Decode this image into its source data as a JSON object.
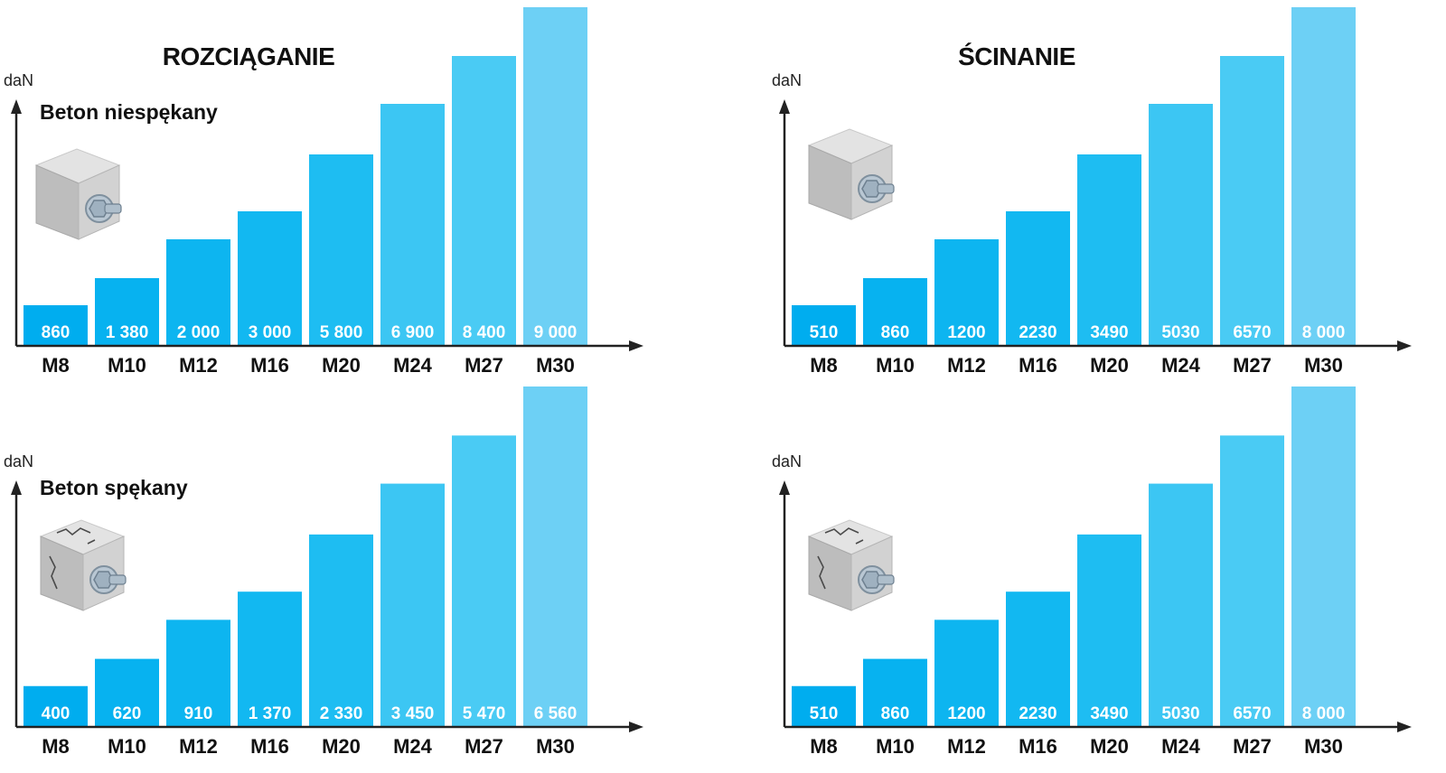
{
  "chart_data": [
    {
      "type": "bar",
      "title": "ROZCIĄGANIE",
      "subtitle": "Beton niespękany",
      "ylabel": "daN",
      "cube_icon": "uncracked-concrete-bolt-icon",
      "categories": [
        "M8",
        "M10",
        "M12",
        "M16",
        "M20",
        "M24",
        "M27",
        "M30"
      ],
      "values": [
        860,
        1380,
        2000,
        3000,
        5800,
        6900,
        8400,
        9000
      ],
      "value_labels": [
        "860",
        "1 380",
        "2 000",
        "3 000",
        "5 800",
        "6 900",
        "8 400",
        "9 000"
      ],
      "colors": [
        "#00ADEF",
        "#07B2F0",
        "#0DB5F0",
        "#12B8F1",
        "#1EBDF2",
        "#3CC6F3",
        "#4ACBF4",
        "#6DD0F5"
      ]
    },
    {
      "type": "bar",
      "title": "ŚCINANIE",
      "subtitle": "",
      "ylabel": "daN",
      "cube_icon": "uncracked-concrete-bolt-icon",
      "categories": [
        "M8",
        "M10",
        "M12",
        "M16",
        "M20",
        "M24",
        "M27",
        "M30"
      ],
      "values": [
        510,
        860,
        1200,
        2230,
        3490,
        5030,
        6570,
        8000
      ],
      "value_labels": [
        "510",
        "860",
        "1200",
        "2230",
        "3490",
        "5030",
        "6570",
        "8 000"
      ],
      "colors": [
        "#00ADEF",
        "#07B2F0",
        "#0DB5F0",
        "#12B8F1",
        "#1EBDF2",
        "#3CC6F3",
        "#4ACBF4",
        "#6DD0F5"
      ]
    },
    {
      "type": "bar",
      "title": "",
      "subtitle": "Beton spękany",
      "ylabel": "daN",
      "cube_icon": "cracked-concrete-bolt-icon",
      "categories": [
        "M8",
        "M10",
        "M12",
        "M16",
        "M20",
        "M24",
        "M27",
        "M30"
      ],
      "values": [
        400,
        620,
        910,
        1370,
        2330,
        3450,
        5470,
        6560
      ],
      "value_labels": [
        "400",
        "620",
        "910",
        "1 370",
        "2 330",
        "3 450",
        "5 470",
        "6 560"
      ],
      "colors": [
        "#00ADEF",
        "#07B2F0",
        "#0DB5F0",
        "#12B8F1",
        "#1EBDF2",
        "#3CC6F3",
        "#4ACBF4",
        "#6DD0F5"
      ]
    },
    {
      "type": "bar",
      "title": "",
      "subtitle": "",
      "ylabel": "daN",
      "cube_icon": "cracked-concrete-bolt-icon",
      "categories": [
        "M8",
        "M10",
        "M12",
        "M16",
        "M20",
        "M24",
        "M27",
        "M30"
      ],
      "values": [
        510,
        860,
        1200,
        2230,
        3490,
        5030,
        6570,
        8000
      ],
      "value_labels": [
        "510",
        "860",
        "1200",
        "2230",
        "3490",
        "5030",
        "6570",
        "8 000"
      ],
      "colors": [
        "#00ADEF",
        "#07B2F0",
        "#0DB5F0",
        "#12B8F1",
        "#1EBDF2",
        "#3CC6F3",
        "#4ACBF4",
        "#6DD0F5"
      ]
    }
  ]
}
